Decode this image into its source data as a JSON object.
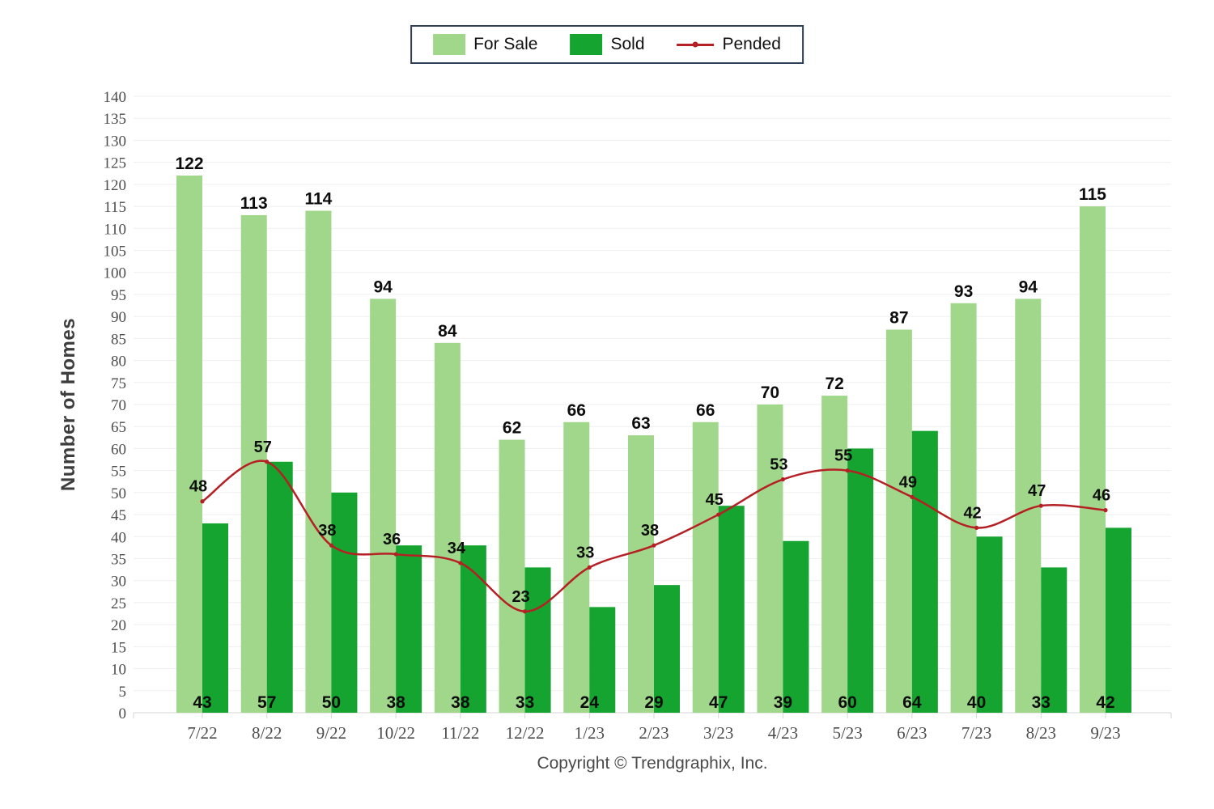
{
  "legend": {
    "items": [
      {
        "label": "For Sale",
        "swatch": "bar",
        "color": "#a1d78a"
      },
      {
        "label": "Sold",
        "swatch": "bar",
        "color": "#14a42f"
      },
      {
        "label": "Pended",
        "swatch": "line",
        "color": "#b52025"
      }
    ]
  },
  "footer": {
    "copyright": "Copyright © Trendgraphix, Inc."
  },
  "colors": {
    "grid": "#efefef",
    "axis": "#d6d6d6",
    "tick_text": "#4d4d4d",
    "for_sale": "#a1d78a",
    "sold": "#14a42f",
    "pended": "#b52025"
  },
  "chart_data": {
    "type": "bar",
    "title": "",
    "xlabel": "",
    "ylabel": "Number of Homes",
    "ylim": [
      0,
      140
    ],
    "y_tick_step": 5,
    "grid": true,
    "legend_position": "top-center",
    "categories": [
      "7/22",
      "8/22",
      "9/22",
      "10/22",
      "11/22",
      "12/22",
      "1/23",
      "2/23",
      "3/23",
      "4/23",
      "5/23",
      "6/23",
      "7/23",
      "8/23",
      "9/23"
    ],
    "series": [
      {
        "name": "For Sale",
        "type": "bar",
        "color": "#a1d78a",
        "values": [
          122,
          113,
          114,
          94,
          84,
          62,
          66,
          63,
          66,
          70,
          72,
          87,
          93,
          94,
          115
        ]
      },
      {
        "name": "Sold",
        "type": "bar",
        "color": "#14a42f",
        "values": [
          43,
          57,
          50,
          38,
          38,
          33,
          24,
          29,
          47,
          39,
          60,
          64,
          40,
          33,
          42
        ]
      },
      {
        "name": "Pended",
        "type": "line",
        "color": "#b52025",
        "values": [
          48,
          57,
          38,
          36,
          34,
          23,
          33,
          38,
          45,
          53,
          55,
          49,
          42,
          47,
          46
        ]
      }
    ]
  }
}
